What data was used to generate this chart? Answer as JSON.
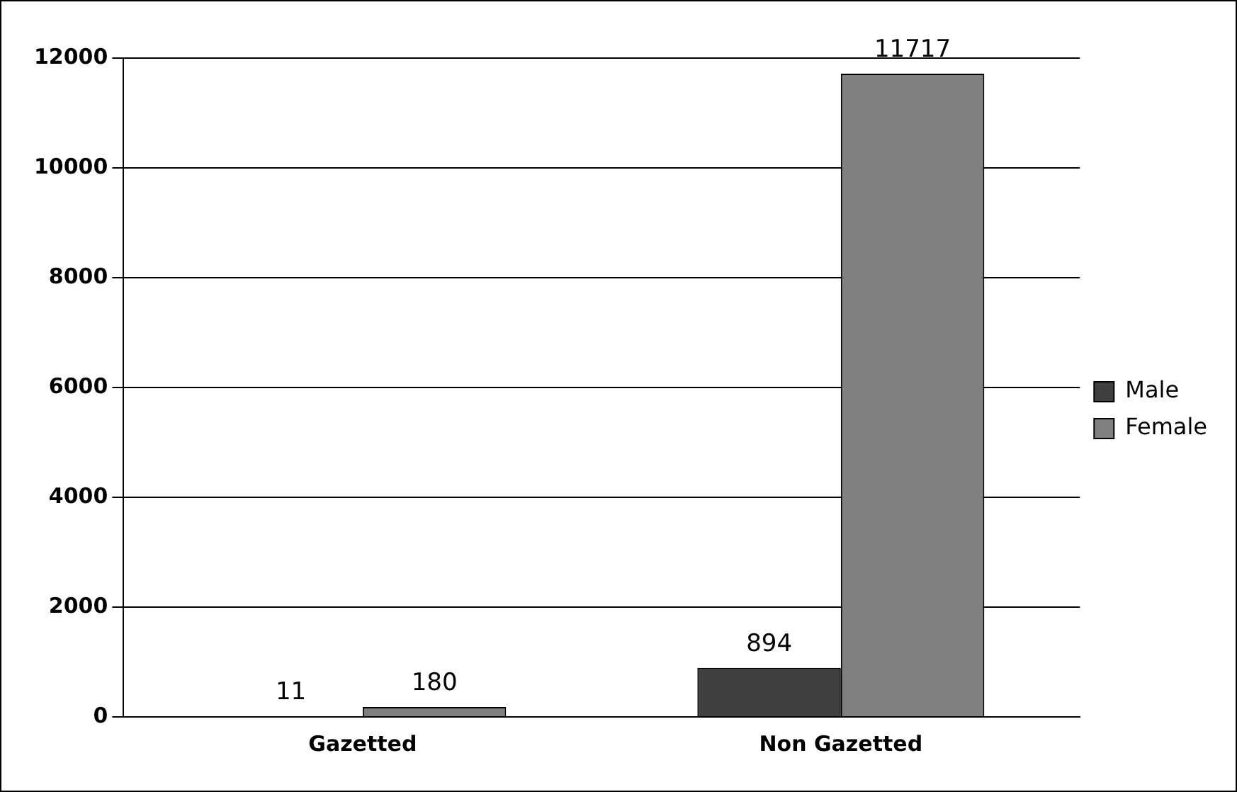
{
  "chart_data": {
    "type": "bar",
    "categories": [
      "Gazetted",
      "Non Gazetted"
    ],
    "series": [
      {
        "name": "Male",
        "color": "#404040",
        "values": [
          11,
          894
        ]
      },
      {
        "name": "Female",
        "color": "#808080",
        "values": [
          180,
          11717
        ]
      }
    ],
    "ylim": [
      0,
      12000
    ],
    "yticks": [
      0,
      2000,
      4000,
      6000,
      8000,
      10000,
      12000
    ],
    "grid": "y",
    "legend": "right",
    "data_labels": true
  }
}
